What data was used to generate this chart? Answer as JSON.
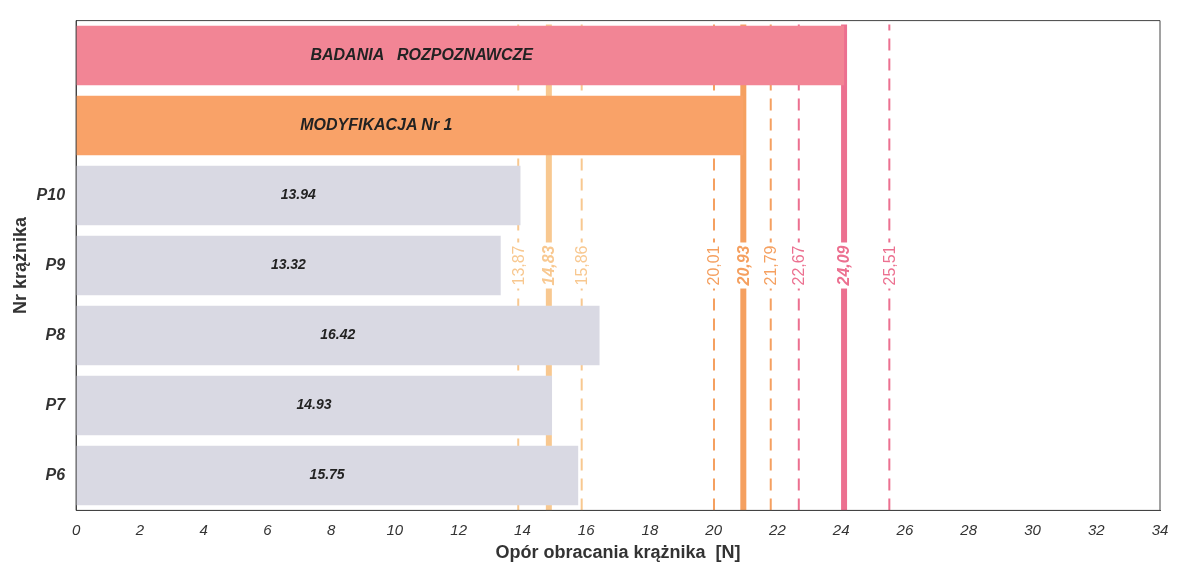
{
  "chart_data": {
    "type": "bar",
    "orientation": "horizontal",
    "xlabel": "Opór obracania krążnika  [N]",
    "ylabel": "Nr krążnika",
    "categories": [
      null,
      null,
      "P10",
      "P9",
      "P8",
      "P7",
      "P6"
    ],
    "values": [
      24.09,
      20.93,
      13.94,
      13.32,
      16.42,
      14.93,
      15.75
    ],
    "colors": [
      "#f28595",
      "#f9a268",
      "#d9d9e3",
      "#d9d9e3",
      "#d9d9e3",
      "#d9d9e3",
      "#d9d9e3"
    ],
    "value_labels": [
      null,
      null,
      "13.94",
      "13.32",
      "16.42",
      "14.93",
      "15.75"
    ],
    "annotations": [
      "BADANIA   ROZPOZNAWCZE",
      "MODYFIKACJA Nr 1"
    ],
    "xlim": [
      0,
      34
    ],
    "xticks": [
      0,
      2,
      4,
      6,
      8,
      10,
      12,
      14,
      16,
      18,
      20,
      22,
      24,
      26,
      28,
      30,
      32,
      34
    ],
    "grid": false,
    "legend": false,
    "ref_lines": [
      {
        "axis": "x",
        "value": 13.87,
        "label": "13,87",
        "color": "#f8c890",
        "line_style": "dashed"
      },
      {
        "axis": "x",
        "value": 14.83,
        "label": "14,83",
        "color": "#f8c890",
        "line_style": "solid"
      },
      {
        "axis": "x",
        "value": 15.86,
        "label": "15,86",
        "color": "#f8c890",
        "line_style": "dashed"
      },
      {
        "axis": "x",
        "value": 20.01,
        "label": "20,01",
        "color": "#f5a060",
        "line_style": "dashed"
      },
      {
        "axis": "x",
        "value": 20.93,
        "label": "20,93",
        "color": "#f5a060",
        "line_style": "solid"
      },
      {
        "axis": "x",
        "value": 21.79,
        "label": "21,79",
        "color": "#f5a060",
        "line_style": "dashed"
      },
      {
        "axis": "x",
        "value": 22.67,
        "label": "22,67",
        "color": "#ec7090",
        "line_style": "dashed"
      },
      {
        "axis": "x",
        "value": 24.09,
        "label": "24,09",
        "color": "#ec7090",
        "line_style": "solid"
      },
      {
        "axis": "x",
        "value": 25.51,
        "label": "25,51",
        "color": "#ec7090",
        "line_style": "dashed"
      }
    ]
  }
}
